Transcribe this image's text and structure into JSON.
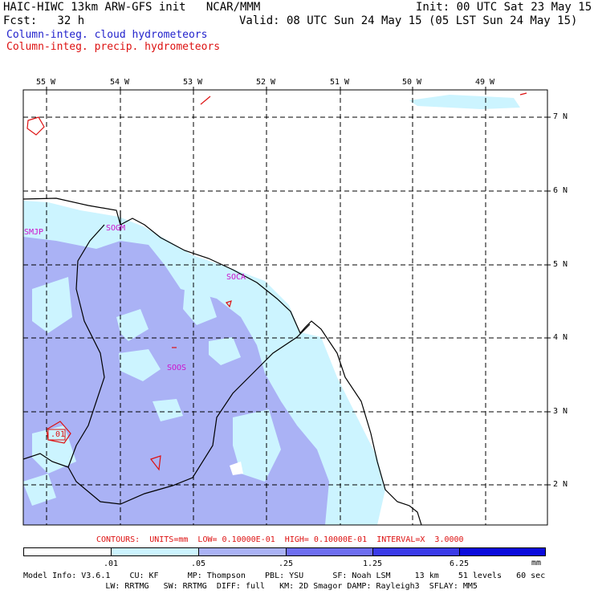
{
  "header": {
    "title_left": "HAIC-HIWC 13km ARW-GFS init   NCAR/MMM",
    "init": "Init: 00 UTC Sat 23 May 15",
    "fcst": "Fcst:   32 h",
    "valid": "Valid: 08 UTC Sun 24 May 15 (05 LST Sun 24 May 15)",
    "legend_cloud": "Column-integ. cloud hydrometeors",
    "legend_precip": "Column-integ. precip. hydrometeors"
  },
  "axes": {
    "lon_labels": [
      "55 W",
      "54 W",
      "53 W",
      "52 W",
      "51 W",
      "50 W",
      "49 W"
    ],
    "lat_labels": [
      "7 N",
      "6 N",
      "5 N",
      "4 N",
      "3 N",
      "2 N"
    ]
  },
  "stations": [
    "SMJP",
    "SOGM",
    "SOCA",
    "SOOS"
  ],
  "contour_label": ".01",
  "contours_line": "CONTOURS:  UNITS=mm  LOW= 0.10000E-01  HIGH= 0.10000E-01  INTERVAL=X  3.0000",
  "colorbar": {
    "colors": [
      "#ffffff",
      "#ccf4ff",
      "#aab2f5",
      "#6e6ef0",
      "#3a3ae8",
      "#0b0bdc"
    ],
    "labels": [
      ".01",
      ".05",
      ".25",
      "1.25",
      "6.25"
    ],
    "unit": "mm"
  },
  "footer": {
    "line1": "Model Info: V3.6.1    CU: KF      MP: Thompson    PBL: YSU      SF: Noah LSM     13 km    51 levels   60 sec",
    "line2": "                 LW: RRTMG   SW: RRTMG  DIFF: full   KM: 2D Smagor DAMP: Rayleigh3  SFLAY: MM5"
  }
}
